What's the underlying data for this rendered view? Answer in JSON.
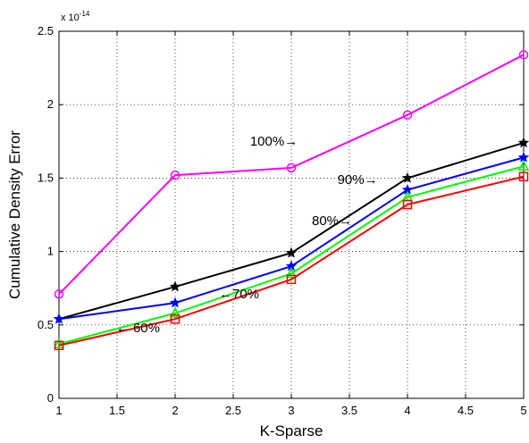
{
  "chart_data": {
    "type": "line",
    "title": "",
    "xlabel": "K-Sparse",
    "ylabel": "Cumulative Density Error",
    "y_exponent": {
      "base": "x 10",
      "power": "-14"
    },
    "xlim": [
      1,
      5
    ],
    "ylim": [
      0,
      2.5
    ],
    "xticks": [
      "1",
      "1.5",
      "2",
      "2.5",
      "3",
      "3.5",
      "4",
      "4.5",
      "5"
    ],
    "yticks": [
      "0",
      "0.5",
      "1",
      "1.5",
      "2",
      "2.5"
    ],
    "grid": true,
    "x": [
      1,
      2,
      3,
      4,
      5
    ],
    "series": [
      {
        "color": "#ff00ff",
        "marker": "circle",
        "values": [
          0.71,
          1.52,
          1.57,
          1.93,
          2.34
        ]
      },
      {
        "color": "#000000",
        "marker": "star",
        "values": [
          0.54,
          0.76,
          0.99,
          1.5,
          1.74
        ]
      },
      {
        "color": "#0000ff",
        "marker": "star",
        "values": [
          0.54,
          0.65,
          0.9,
          1.42,
          1.64
        ]
      },
      {
        "color": "#00ff00",
        "marker": "triangle",
        "values": [
          0.37,
          0.58,
          0.85,
          1.37,
          1.58
        ]
      },
      {
        "color": "#ff0000",
        "marker": "square",
        "values": [
          0.36,
          0.54,
          0.81,
          1.32,
          1.51
        ]
      }
    ],
    "annotations": [
      {
        "text": "100%→",
        "x": 2.85,
        "y": 1.72
      },
      {
        "text": "90%→",
        "x": 3.57,
        "y": 1.46
      },
      {
        "text": "80%→",
        "x": 3.35,
        "y": 1.18
      },
      {
        "text": "←70%",
        "x": 2.55,
        "y": 0.68
      },
      {
        "text": "← 60%",
        "x": 1.68,
        "y": 0.45
      }
    ]
  }
}
